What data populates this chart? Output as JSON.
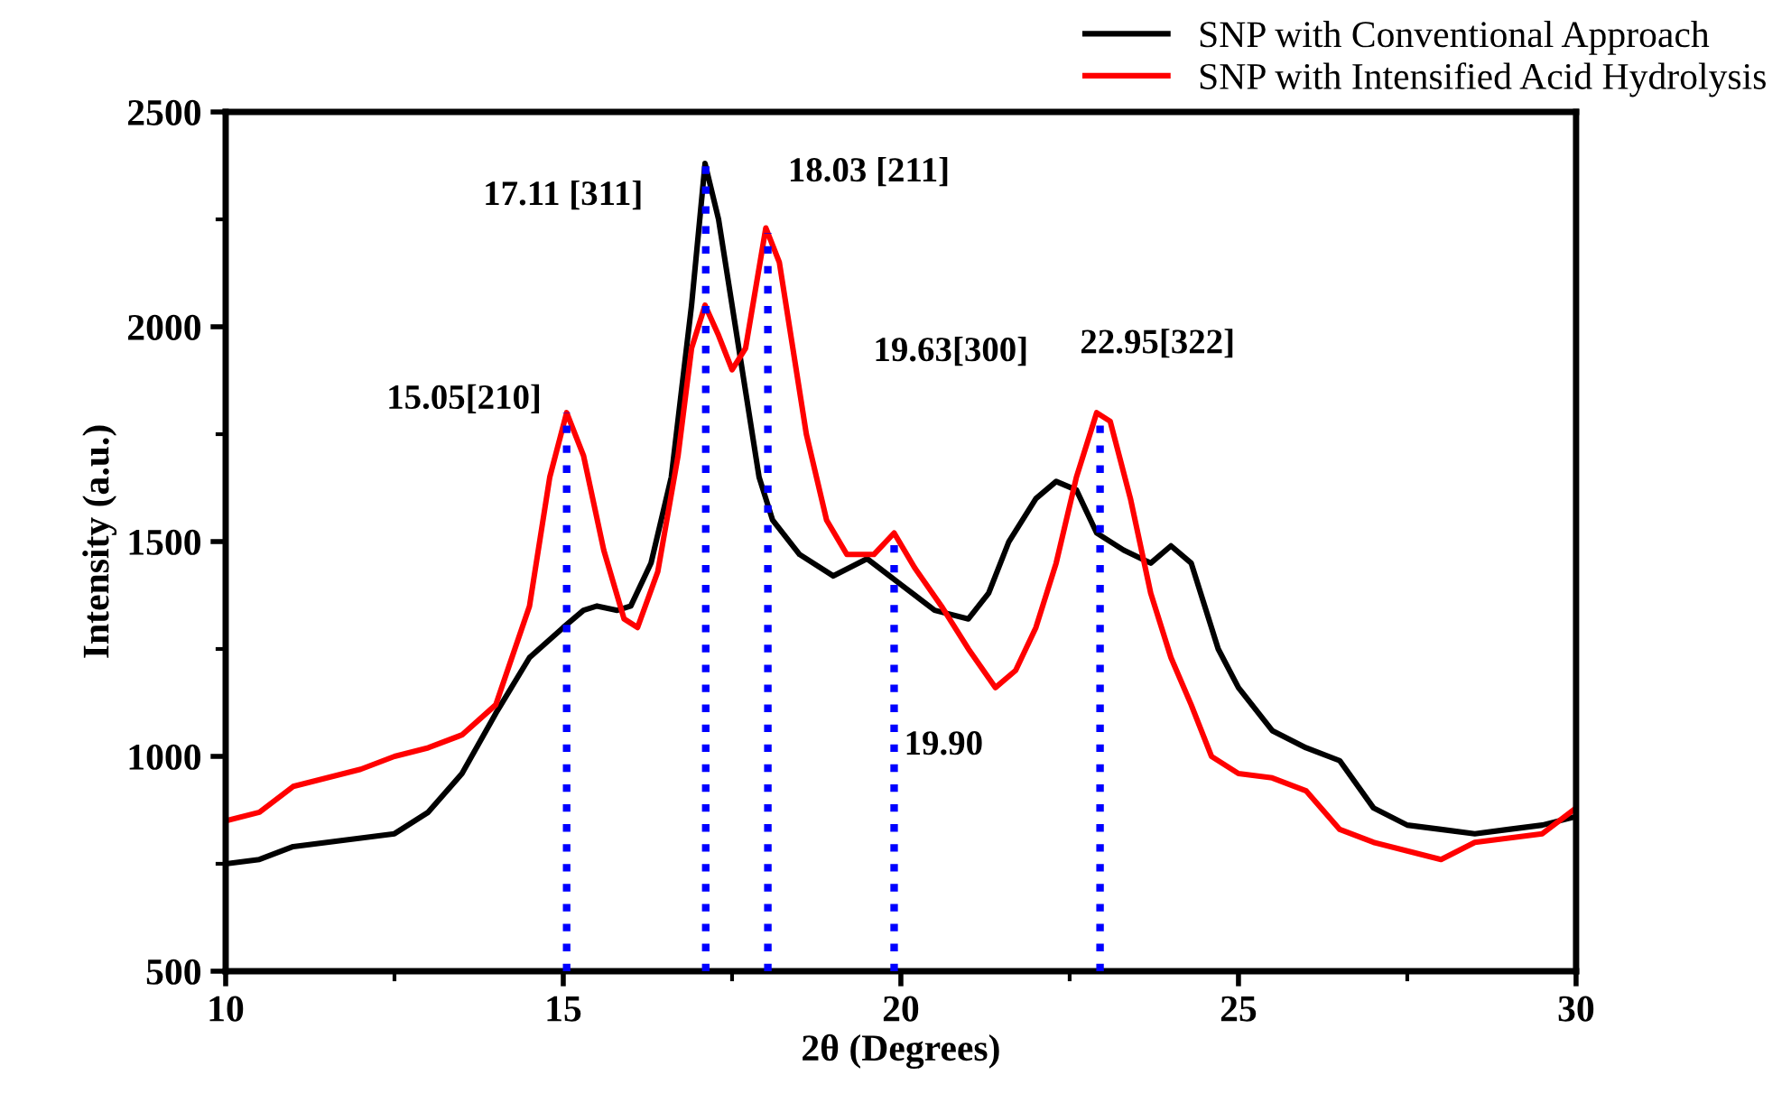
{
  "chart_data": {
    "type": "line",
    "xlabel": "2θ (Degrees)",
    "ylabel": "Intensity (a.u.)",
    "xlim": [
      10,
      30
    ],
    "xticks": [
      10,
      15,
      20,
      25,
      30
    ],
    "ylim": [
      500,
      2500
    ],
    "yticks": [
      500,
      1000,
      1500,
      2000,
      2500
    ],
    "grid": false,
    "legend": "top right",
    "line_style": "solid",
    "marker": "none",
    "series": [
      {
        "name": "SNP with Conventional Approach",
        "color": "#000000",
        "x": [
          10,
          10.5,
          11,
          11.5,
          12,
          12.5,
          13,
          13.5,
          14,
          14.5,
          15,
          15.3,
          15.5,
          15.8,
          16,
          16.3,
          16.6,
          16.9,
          17.1,
          17.3,
          17.5,
          17.7,
          17.9,
          18.1,
          18.5,
          19,
          19.5,
          20,
          20.5,
          21,
          21.3,
          21.6,
          22,
          22.3,
          22.6,
          22.9,
          23.3,
          23.7,
          24,
          24.3,
          24.7,
          25,
          25.5,
          26,
          26.5,
          27,
          27.5,
          28,
          28.5,
          29,
          29.5,
          30
        ],
        "values": [
          750,
          760,
          790,
          800,
          810,
          820,
          870,
          960,
          1100,
          1230,
          1300,
          1340,
          1350,
          1340,
          1350,
          1450,
          1650,
          2050,
          2380,
          2250,
          2050,
          1850,
          1650,
          1550,
          1470,
          1420,
          1460,
          1400,
          1340,
          1320,
          1380,
          1500,
          1600,
          1640,
          1620,
          1520,
          1480,
          1450,
          1490,
          1450,
          1250,
          1160,
          1060,
          1020,
          990,
          880,
          840,
          830,
          820,
          830,
          840,
          860
        ]
      },
      {
        "name": "SNP with Intensified Acid Hydrolysis",
        "color": "#ff0000",
        "x": [
          10,
          10.5,
          11,
          11.5,
          12,
          12.5,
          13,
          13.5,
          14,
          14.5,
          14.8,
          15.05,
          15.3,
          15.6,
          15.9,
          16.1,
          16.4,
          16.7,
          16.9,
          17.1,
          17.3,
          17.5,
          17.7,
          18.0,
          18.2,
          18.4,
          18.6,
          18.9,
          19.2,
          19.6,
          19.9,
          20.2,
          20.6,
          21,
          21.4,
          21.7,
          22,
          22.3,
          22.6,
          22.9,
          23.1,
          23.4,
          23.7,
          24,
          24.3,
          24.6,
          25,
          25.5,
          26,
          26.5,
          27,
          27.5,
          28,
          28.5,
          29,
          29.5,
          30
        ],
        "values": [
          850,
          870,
          930,
          950,
          970,
          1000,
          1020,
          1050,
          1120,
          1350,
          1650,
          1800,
          1700,
          1480,
          1320,
          1300,
          1430,
          1700,
          1950,
          2050,
          1980,
          1900,
          1950,
          2230,
          2150,
          1950,
          1750,
          1550,
          1470,
          1470,
          1520,
          1440,
          1350,
          1250,
          1160,
          1200,
          1300,
          1450,
          1650,
          1800,
          1780,
          1600,
          1380,
          1230,
          1120,
          1000,
          960,
          950,
          920,
          830,
          800,
          780,
          760,
          800,
          810,
          820,
          880
        ]
      }
    ],
    "ref_lines": [
      {
        "axis": "x",
        "value": 15.05,
        "color": "#0000ff",
        "line_style": "dotted",
        "label": "15.05[210]"
      },
      {
        "axis": "x",
        "value": 17.11,
        "color": "#0000ff",
        "line_style": "dotted",
        "label": "17.11 [311]"
      },
      {
        "axis": "x",
        "value": 18.03,
        "color": "#0000ff",
        "line_style": "dotted",
        "label": "18.03 [211]"
      },
      {
        "axis": "x",
        "value": 19.9,
        "color": "#0000ff",
        "line_style": "dotted",
        "label": "19.90"
      },
      {
        "axis": "x",
        "value": 22.95,
        "color": "#0000ff",
        "line_style": "dotted",
        "label": "22.95[322]"
      }
    ],
    "annotations": [
      "19.63[300]"
    ]
  }
}
